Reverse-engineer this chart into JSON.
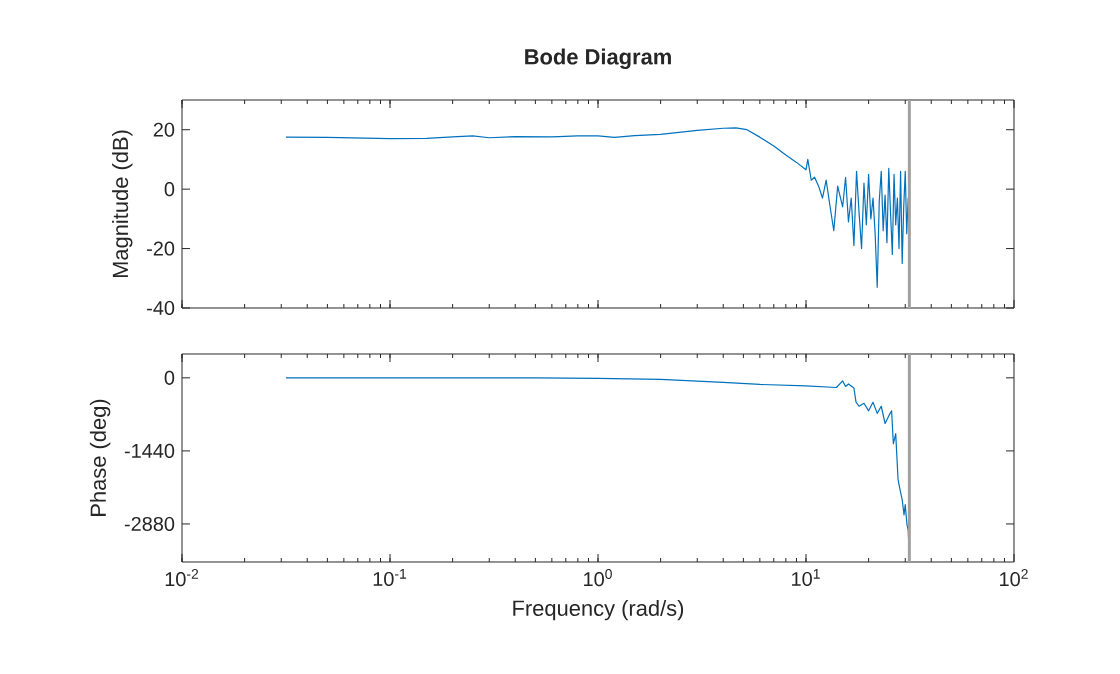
{
  "chart_data": [
    {
      "type": "line",
      "title": "Bode Diagram",
      "ylabel": "Magnitude (dB)",
      "tick_labels": "y",
      "log": "x",
      "grid": false,
      "xlim": [
        0.01,
        100
      ],
      "xticks": [
        {
          "value": 0.01,
          "label": null
        },
        {
          "value": 0.1,
          "label": null
        },
        {
          "value": 1,
          "label": null
        },
        {
          "value": 10,
          "label": null
        },
        {
          "value": 100,
          "label": null
        }
      ],
      "ylim": [
        -40,
        30
      ],
      "yticks": [
        -40,
        -20,
        0,
        20
      ],
      "ref_lines": [
        {
          "axis": "x",
          "value": 31.4,
          "color": "#a0a0a0"
        }
      ],
      "series": [
        {
          "color": "#0072bd",
          "x": [
            0.0316,
            0.05,
            0.1,
            0.15,
            0.2,
            0.25,
            0.3,
            0.4,
            0.6,
            0.8,
            1.0,
            1.2,
            1.5,
            2.0,
            3.0,
            4.0,
            4.6,
            5.2,
            6,
            7,
            8,
            9,
            10,
            10.2,
            10.6,
            11,
            11.5,
            12,
            12.5,
            13,
            13.6,
            14.2,
            15,
            15.5,
            16,
            16.5,
            17,
            17.5,
            18,
            18.5,
            19,
            19.5,
            20,
            20.5,
            21,
            21.5,
            22,
            22.5,
            23,
            23.5,
            24,
            24.5,
            25,
            25.5,
            26,
            26.5,
            27,
            27.5,
            28,
            28.5,
            29,
            29.5,
            30,
            30.5,
            31,
            31.4
          ],
          "values": [
            17.5,
            17.4,
            17.0,
            17.1,
            17.6,
            17.9,
            17.3,
            17.7,
            17.6,
            17.9,
            17.9,
            17.4,
            18.0,
            18.4,
            19.8,
            20.5,
            20.6,
            20.0,
            17.5,
            14.5,
            11.5,
            9,
            6.5,
            10,
            3,
            4,
            1,
            -3,
            3,
            -5,
            -14,
            1,
            -6,
            4,
            -11,
            -3,
            -19,
            6,
            -8,
            -20,
            2,
            -12,
            5,
            -10,
            -3,
            -15,
            -33,
            -4,
            6,
            -14,
            -2,
            -18,
            7,
            -8,
            -22,
            5,
            -12,
            -3,
            -20,
            6,
            -25,
            -6,
            6,
            -15,
            -3,
            -12
          ]
        }
      ]
    },
    {
      "type": "line",
      "ylabel": "Phase (deg)",
      "xlabel": "Frequency (rad/s)",
      "log": "x",
      "grid": false,
      "xlim": [
        0.01,
        100
      ],
      "xticks": [
        {
          "value": 0.01,
          "label": "10$^{-2}$"
        },
        {
          "value": 0.1,
          "label": "10$^{-1}$"
        },
        {
          "value": 1,
          "label": "10$^{0}$"
        },
        {
          "value": 10,
          "label": "10$^{1}$"
        },
        {
          "value": 100,
          "label": "10$^{2}$"
        }
      ],
      "ylim": [
        -3630,
        470
      ],
      "yticks": [
        -2880,
        -1440,
        0
      ],
      "ref_lines": [
        {
          "axis": "x",
          "value": 31.4,
          "color": "#a0a0a0"
        }
      ],
      "series": [
        {
          "color": "#0072bd",
          "x": [
            0.0316,
            0.1,
            0.5,
            1,
            2,
            4,
            6,
            10,
            14,
            15,
            15.5,
            16,
            17,
            17.4,
            18,
            19,
            20,
            21,
            22,
            23,
            24,
            25,
            25.8,
            26.3,
            27,
            27.7,
            28.3,
            29,
            29.6,
            30,
            30.6,
            31,
            31.4
          ],
          "values": [
            0,
            0,
            0,
            -10,
            -30,
            -90,
            -130,
            -160,
            -190,
            -60,
            -170,
            -120,
            -200,
            -480,
            -560,
            -500,
            -650,
            -480,
            -700,
            -560,
            -900,
            -750,
            -650,
            -1300,
            -1100,
            -2000,
            -2200,
            -2400,
            -2700,
            -2500,
            -2900,
            -3000,
            -3550
          ]
        }
      ]
    }
  ]
}
